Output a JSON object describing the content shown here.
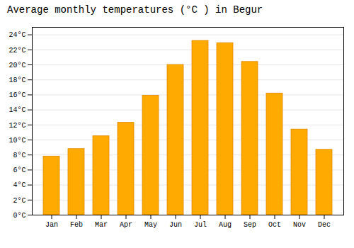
{
  "chart_data": {
    "type": "bar",
    "title": "Average monthly temperatures (°C ) in Begur",
    "categories": [
      "Jan",
      "Feb",
      "Mar",
      "Apr",
      "May",
      "Jun",
      "Jul",
      "Aug",
      "Sep",
      "Oct",
      "Nov",
      "Dec"
    ],
    "values": [
      7.8,
      8.8,
      10.5,
      12.3,
      15.9,
      20.0,
      23.2,
      22.9,
      20.4,
      16.2,
      11.4,
      8.7
    ],
    "color": "#FFAA00",
    "ylim": [
      0,
      25
    ],
    "yticks": [
      {
        "value": 0,
        "label": "0°C"
      },
      {
        "value": 2,
        "label": "2°C"
      },
      {
        "value": 4,
        "label": "4°C"
      },
      {
        "value": 6,
        "label": "6°C"
      },
      {
        "value": 8,
        "label": "8°C"
      },
      {
        "value": 10,
        "label": "10°C"
      },
      {
        "value": 12,
        "label": "12°C"
      },
      {
        "value": 14,
        "label": "14°C"
      },
      {
        "value": 16,
        "label": "16°C"
      },
      {
        "value": 18,
        "label": "18°C"
      },
      {
        "value": 20,
        "label": "20°C"
      },
      {
        "value": 22,
        "label": "22°C"
      },
      {
        "value": 24,
        "label": "24°C"
      }
    ],
    "grid": true
  }
}
